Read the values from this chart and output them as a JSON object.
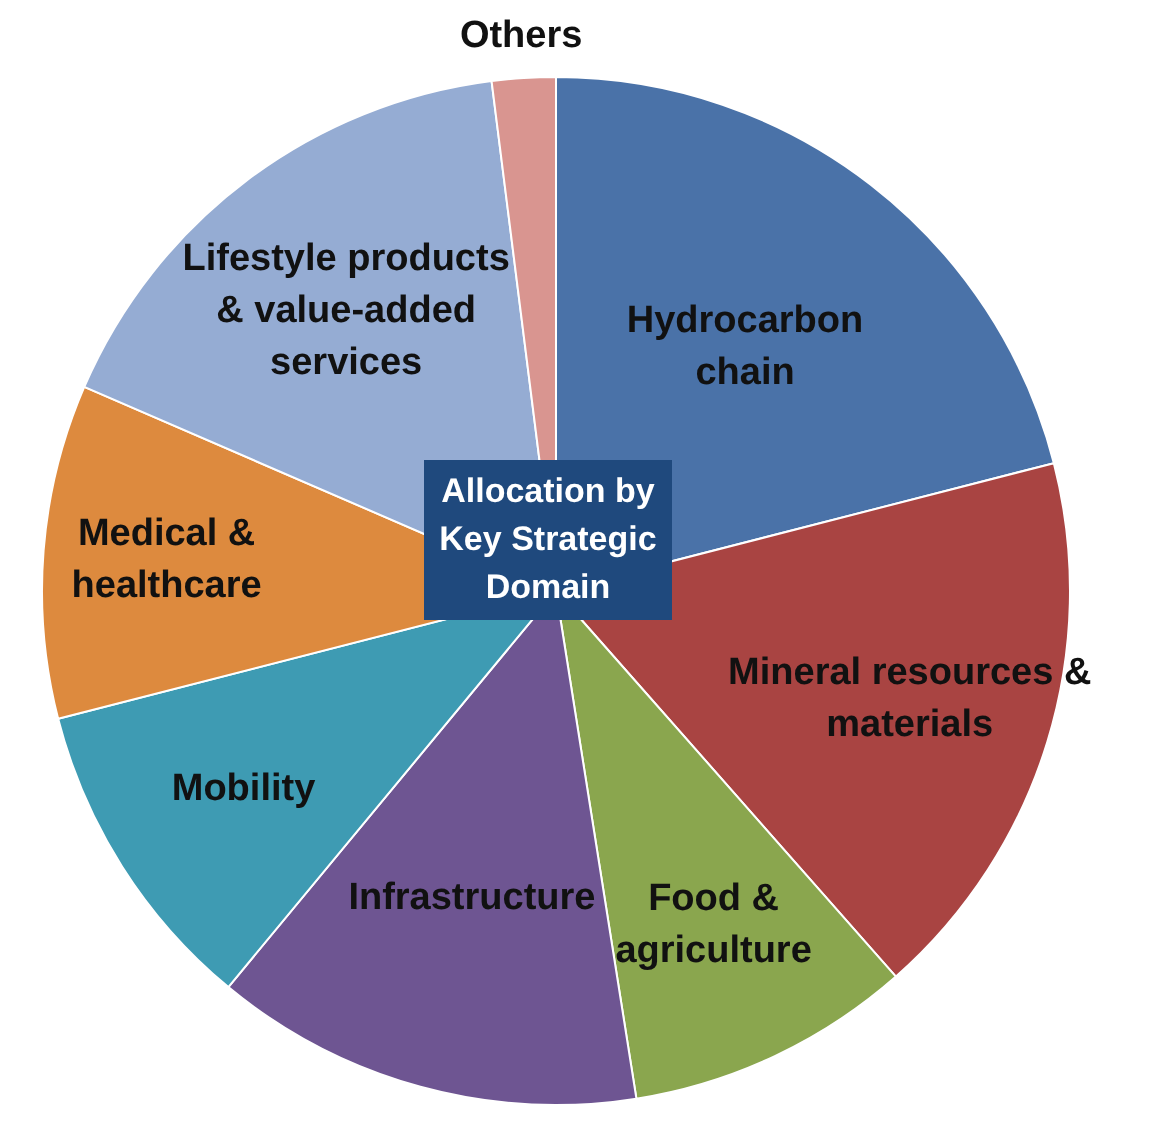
{
  "chart_data": {
    "type": "pie",
    "title": "Allocation by Key Strategic Domain",
    "categories": [
      "Hydrocarbon chain",
      "Mineral resources & materials",
      "Food & agriculture",
      "Infrastructure",
      "Mobility",
      "Medical & healthcare",
      "Lifestyle products & value-added services",
      "Others"
    ],
    "values": [
      21,
      17.5,
      9,
      13.5,
      10,
      10.5,
      16.5,
      2
    ],
    "colors": [
      "#4a72a8",
      "#a94442",
      "#8aa64e",
      "#6e5592",
      "#3e9bb3",
      "#dd8a3e",
      "#95acd3",
      "#d99590"
    ],
    "legend": false
  }
}
